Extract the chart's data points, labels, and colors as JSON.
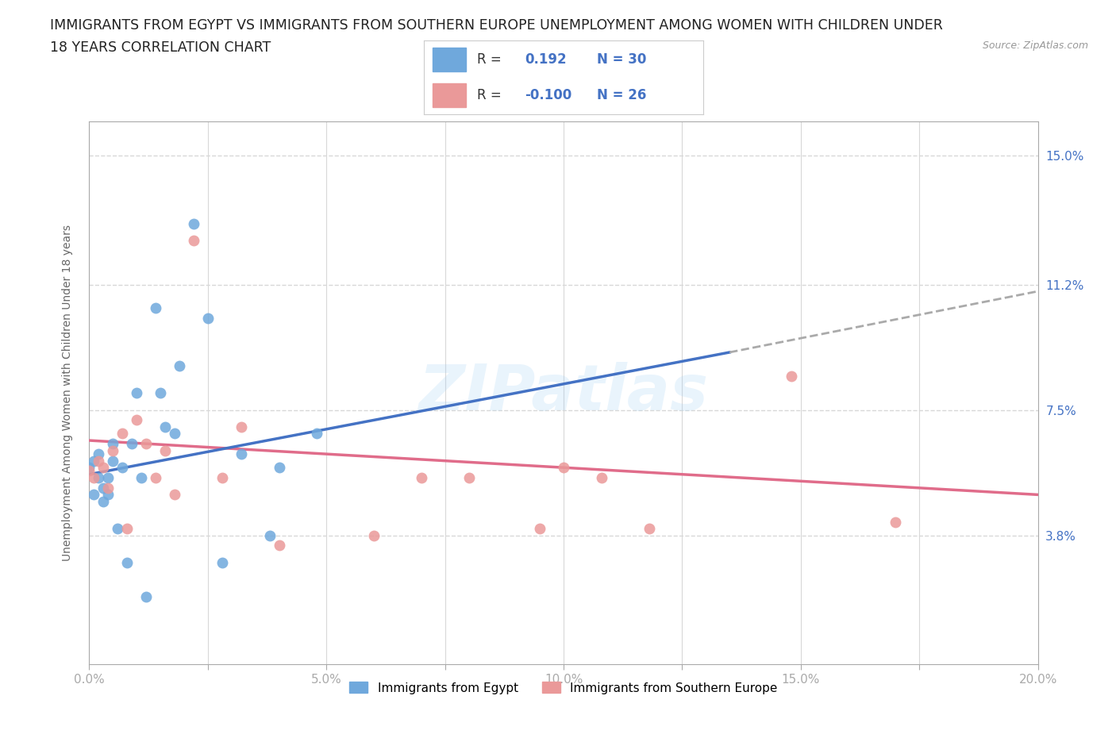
{
  "title_line1": "IMMIGRANTS FROM EGYPT VS IMMIGRANTS FROM SOUTHERN EUROPE UNEMPLOYMENT AMONG WOMEN WITH CHILDREN UNDER",
  "title_line2": "18 YEARS CORRELATION CHART",
  "source": "Source: ZipAtlas.com",
  "xlabel_ticks": [
    "0.0%",
    "",
    "5.0%",
    "",
    "10.0%",
    "",
    "15.0%",
    "",
    "20.0%"
  ],
  "xlabel_values": [
    0.0,
    0.025,
    0.05,
    0.075,
    0.1,
    0.125,
    0.15,
    0.175,
    0.2
  ],
  "xlabel_minor": [
    0.025,
    0.075,
    0.125,
    0.175
  ],
  "ylabel_ticks": [
    "3.8%",
    "7.5%",
    "11.2%",
    "15.0%"
  ],
  "ylabel_values": [
    0.038,
    0.075,
    0.112,
    0.15
  ],
  "xlim": [
    0.0,
    0.2
  ],
  "ylim": [
    0.0,
    0.16
  ],
  "watermark": "ZIPatlas",
  "color_egypt": "#6fa8dc",
  "color_south_europe": "#ea9999",
  "color_egypt_line": "#4472c4",
  "color_south_europe_line": "#e06c8a",
  "label_egypt": "Immigrants from Egypt",
  "label_south_europe": "Immigrants from Southern Europe",
  "egypt_x": [
    0.0,
    0.001,
    0.001,
    0.002,
    0.002,
    0.003,
    0.003,
    0.004,
    0.004,
    0.005,
    0.005,
    0.006,
    0.007,
    0.008,
    0.009,
    0.01,
    0.011,
    0.012,
    0.014,
    0.015,
    0.016,
    0.018,
    0.019,
    0.022,
    0.025,
    0.028,
    0.032,
    0.038,
    0.04,
    0.048
  ],
  "egypt_y": [
    0.058,
    0.06,
    0.05,
    0.062,
    0.055,
    0.048,
    0.052,
    0.05,
    0.055,
    0.065,
    0.06,
    0.04,
    0.058,
    0.03,
    0.065,
    0.08,
    0.055,
    0.02,
    0.105,
    0.08,
    0.07,
    0.068,
    0.088,
    0.13,
    0.102,
    0.03,
    0.062,
    0.038,
    0.058,
    0.068
  ],
  "south_europe_x": [
    0.0,
    0.001,
    0.002,
    0.003,
    0.004,
    0.005,
    0.007,
    0.008,
    0.01,
    0.012,
    0.014,
    0.016,
    0.018,
    0.022,
    0.028,
    0.032,
    0.04,
    0.06,
    0.07,
    0.08,
    0.095,
    0.1,
    0.108,
    0.118,
    0.148,
    0.17
  ],
  "south_europe_y": [
    0.057,
    0.055,
    0.06,
    0.058,
    0.052,
    0.063,
    0.068,
    0.04,
    0.072,
    0.065,
    0.055,
    0.063,
    0.05,
    0.125,
    0.055,
    0.07,
    0.035,
    0.038,
    0.055,
    0.055,
    0.04,
    0.058,
    0.055,
    0.04,
    0.085,
    0.042
  ],
  "egypt_trend_x0": 0.0,
  "egypt_trend_x1": 0.135,
  "egypt_trend_x1_dash": 0.2,
  "egypt_trend_y0": 0.056,
  "egypt_trend_y1": 0.092,
  "egypt_trend_y1_dash": 0.11,
  "south_europe_trend_x0": 0.0,
  "south_europe_trend_x1": 0.2,
  "south_europe_trend_y0": 0.066,
  "south_europe_trend_y1": 0.05,
  "background_color": "#ffffff",
  "grid_color": "#d8d8d8",
  "axis_color": "#aaaaaa",
  "title_fontsize": 12.5,
  "tick_fontsize": 11,
  "legend_fontsize": 12
}
